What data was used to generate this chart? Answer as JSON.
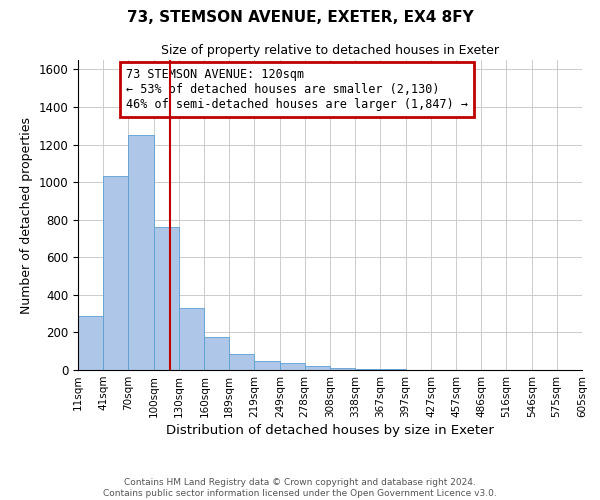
{
  "title": "73, STEMSON AVENUE, EXETER, EX4 8FY",
  "subtitle": "Size of property relative to detached houses in Exeter",
  "xlabel": "Distribution of detached houses by size in Exeter",
  "ylabel": "Number of detached properties",
  "bar_color": "#aec6e8",
  "bar_edge_color": "#5a9fd4",
  "property_line_x": 120,
  "property_line_color": "#c00000",
  "annotation_title": "73 STEMSON AVENUE: 120sqm",
  "annotation_line1": "← 53% of detached houses are smaller (2,130)",
  "annotation_line2": "46% of semi-detached houses are larger (1,847) →",
  "annotation_box_color": "#c00000",
  "bin_edges": [
    11,
    41,
    70,
    100,
    130,
    160,
    189,
    219,
    249,
    278,
    308,
    338,
    367,
    397,
    427,
    457,
    486,
    516,
    546,
    575,
    605
  ],
  "bin_heights": [
    285,
    1035,
    1250,
    760,
    330,
    175,
    85,
    50,
    35,
    20,
    10,
    5,
    3,
    0,
    0,
    0,
    2,
    0,
    0,
    1
  ],
  "ylim": [
    0,
    1650
  ],
  "yticks": [
    0,
    200,
    400,
    600,
    800,
    1000,
    1200,
    1400,
    1600
  ],
  "footer_line1": "Contains HM Land Registry data © Crown copyright and database right 2024.",
  "footer_line2": "Contains public sector information licensed under the Open Government Licence v3.0.",
  "background_color": "#ffffff",
  "plot_bg_color": "#ffffff"
}
